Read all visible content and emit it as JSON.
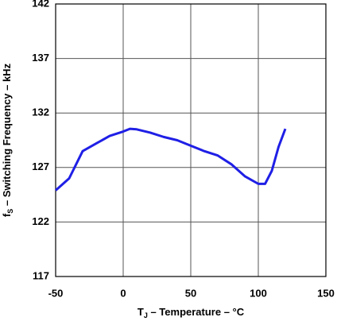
{
  "chart_data": {
    "type": "line",
    "x_label": [
      "T",
      "J",
      " – Temperature – °C"
    ],
    "y_label": [
      "f",
      "S",
      " – Switching Frequency – kHz"
    ],
    "x": [
      -50,
      -40,
      -30,
      -20,
      -10,
      0,
      5,
      10,
      20,
      30,
      40,
      50,
      60,
      70,
      80,
      90,
      100,
      105,
      110,
      115,
      120
    ],
    "series": [
      {
        "color": "#1f1fe6",
        "values": [
          124.9,
          126.0,
          128.5,
          129.2,
          129.9,
          130.3,
          130.55,
          130.5,
          130.2,
          129.8,
          129.5,
          129.0,
          128.5,
          128.1,
          127.3,
          126.2,
          125.5,
          125.5,
          126.7,
          128.9,
          130.55
        ]
      }
    ],
    "xlim": [
      -50,
      150
    ],
    "xticks": [
      -50,
      0,
      50,
      100,
      150
    ],
    "ylim": [
      117,
      142
    ],
    "yticks": [
      117,
      122,
      127,
      132,
      137,
      142
    ],
    "grid": true
  }
}
